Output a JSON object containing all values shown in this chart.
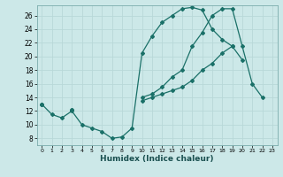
{
  "xlabel": "Humidex (Indice chaleur)",
  "bg_color": "#cce8e8",
  "grid_color": "#b8d8d8",
  "line_color": "#1a7068",
  "xlim": [
    -0.5,
    23.5
  ],
  "ylim": [
    7.0,
    27.5
  ],
  "yticks": [
    8,
    10,
    12,
    14,
    16,
    18,
    20,
    22,
    24,
    26
  ],
  "xticks": [
    0,
    1,
    2,
    3,
    4,
    5,
    6,
    7,
    8,
    9,
    10,
    11,
    12,
    13,
    14,
    15,
    16,
    17,
    18,
    19,
    20,
    21,
    22,
    23
  ],
  "line1_y": [
    13,
    11.5,
    11,
    12,
    10,
    9.5,
    9,
    8,
    8.2,
    9.5,
    20.5,
    23,
    25,
    26,
    27,
    27.2,
    26.8,
    24,
    22.5,
    21.5,
    19.5,
    null,
    null,
    null
  ],
  "line2_y": [
    13,
    null,
    null,
    12.2,
    null,
    null,
    null,
    null,
    null,
    null,
    13.5,
    14,
    14.5,
    15,
    15.5,
    16.5,
    18,
    19,
    20.5,
    21.5,
    null,
    null,
    null,
    null
  ],
  "line3_y": [
    13,
    null,
    null,
    12.2,
    null,
    null,
    null,
    null,
    null,
    null,
    14,
    14.5,
    15.5,
    17,
    18,
    21.5,
    23.5,
    26,
    27,
    27,
    21.5,
    16,
    14,
    null
  ]
}
